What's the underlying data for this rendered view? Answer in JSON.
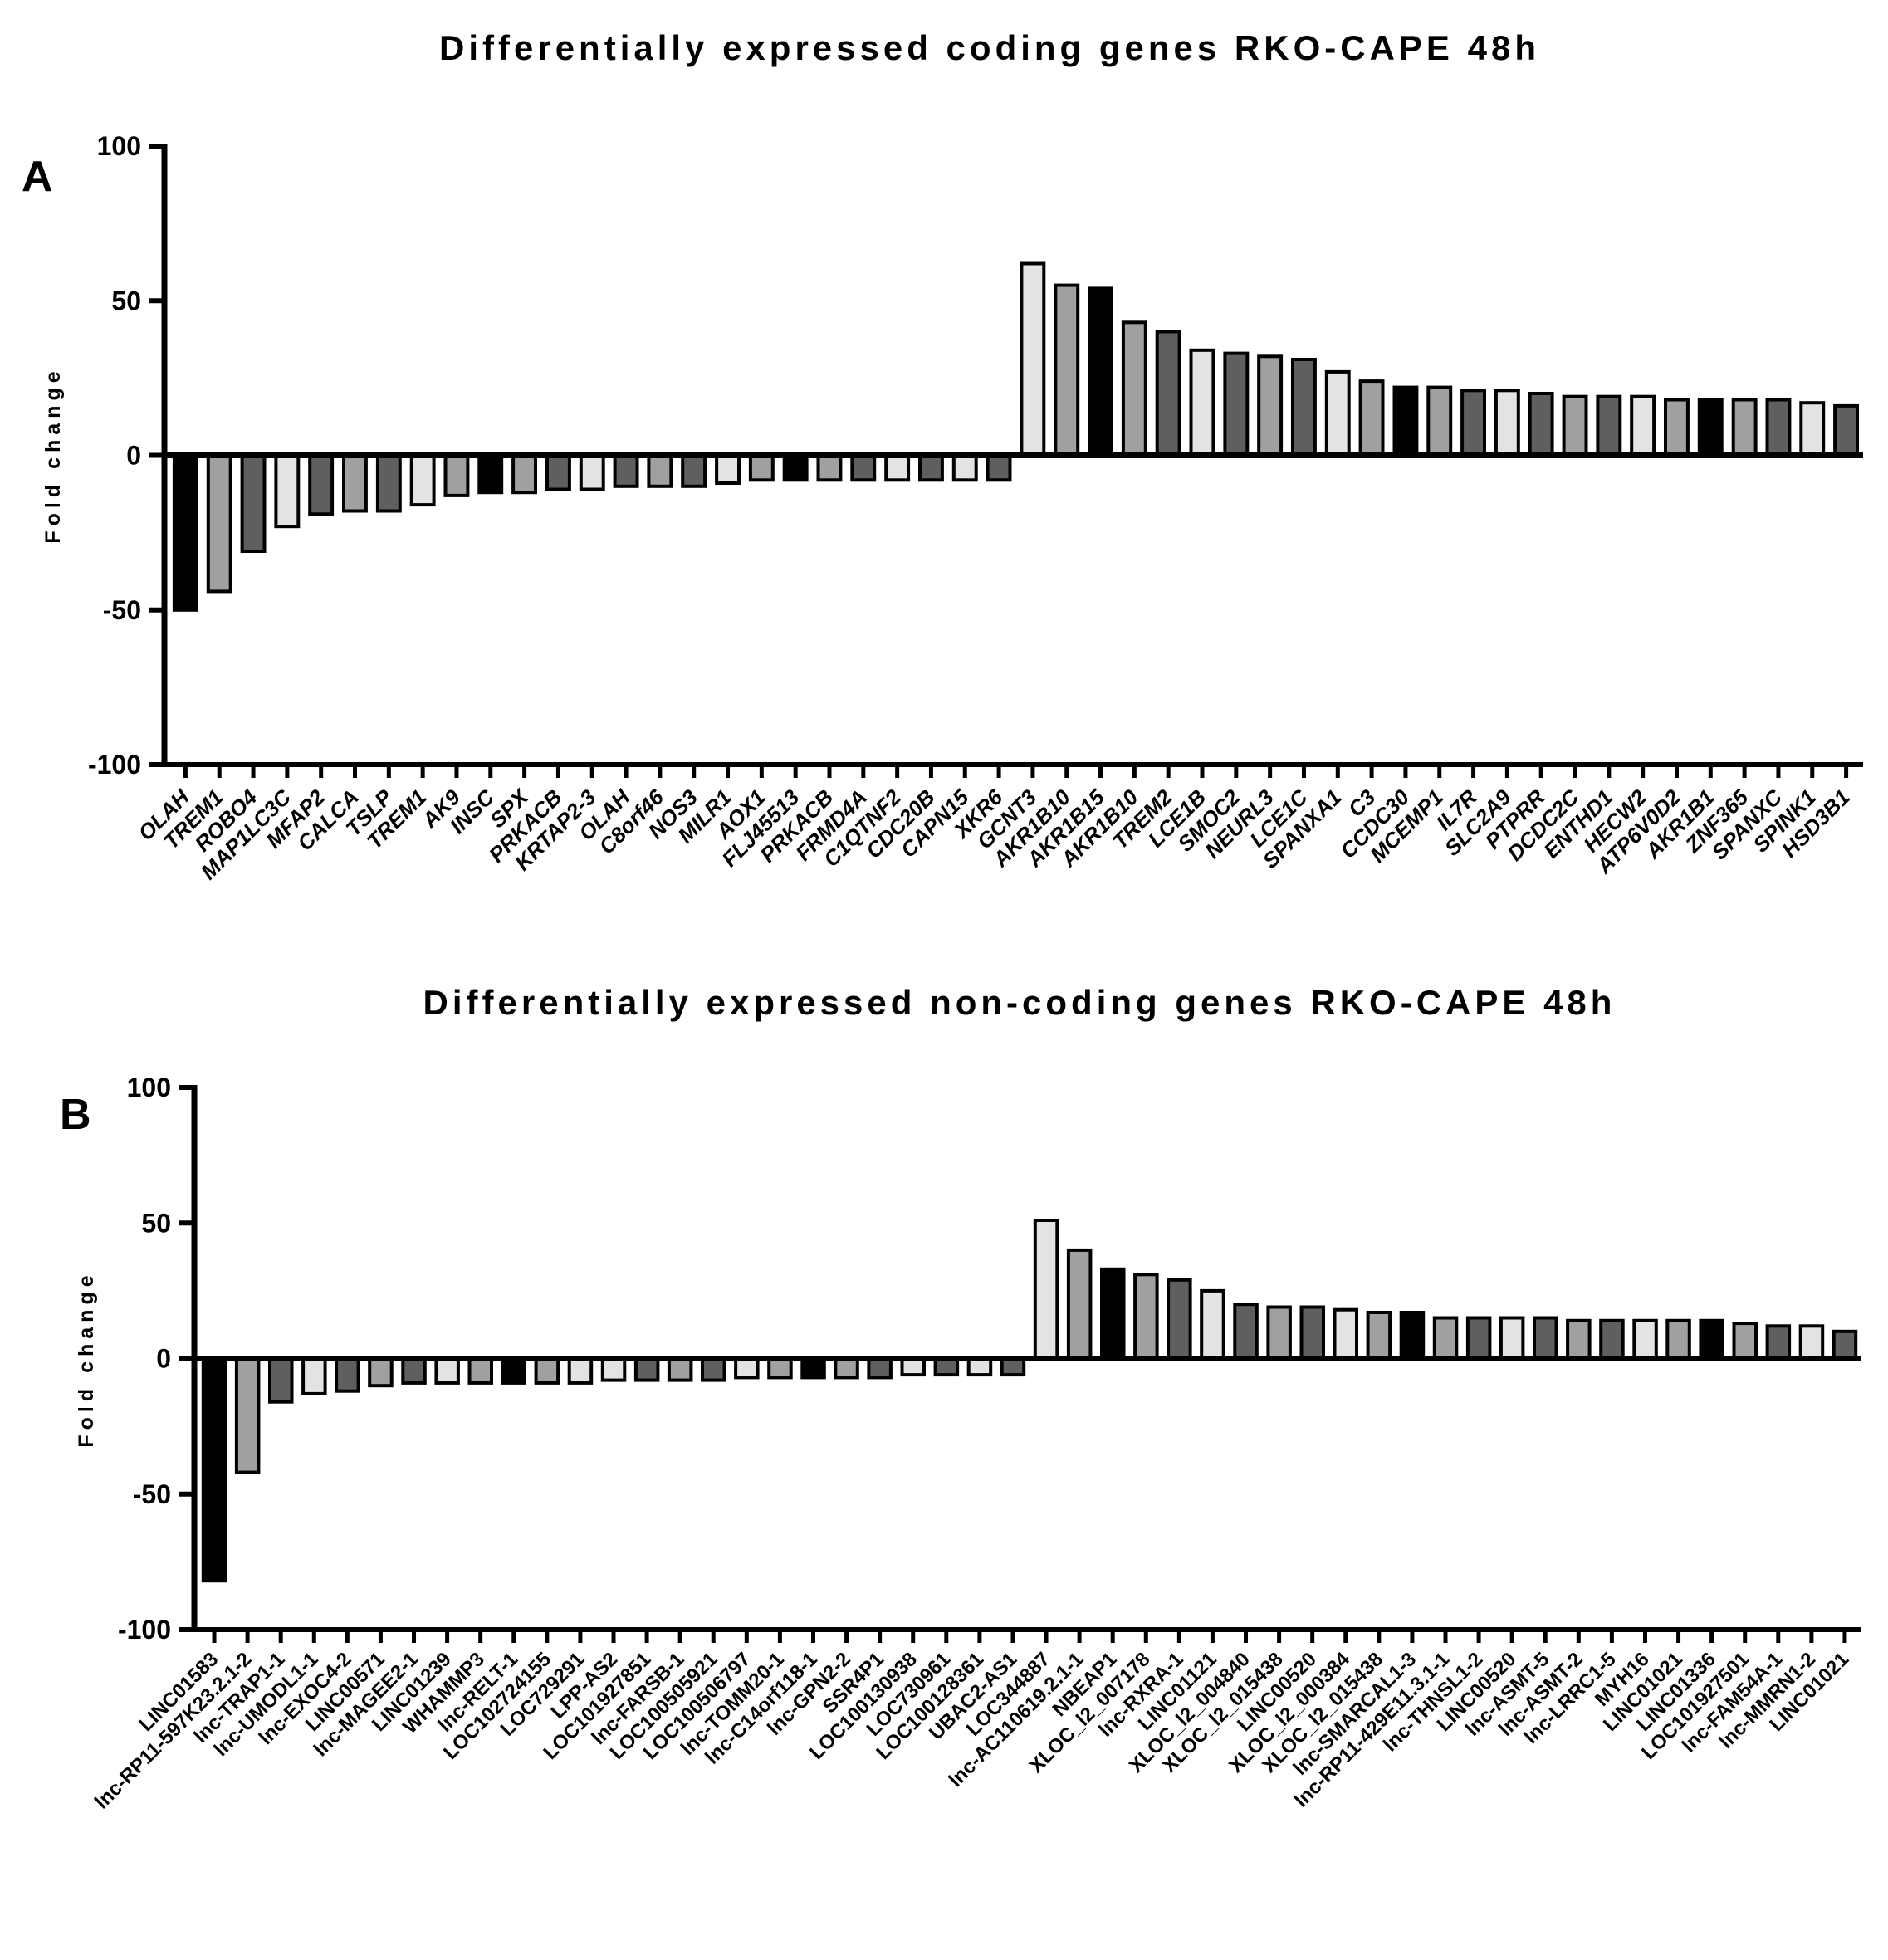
{
  "colors": {
    "palette": [
      "#000000",
      "#a0a0a0",
      "#5f5f5f",
      "#e3e3e3"
    ],
    "edge": "#000000"
  },
  "chart_data": [
    {
      "type": "bar",
      "panel": "A",
      "title": "Differentially expressed coding genes  RKO-CAPE 48h",
      "xlabel": "",
      "ylabel": "Fold change",
      "ylim": [
        -100,
        100
      ],
      "yticks": [
        100,
        50,
        0,
        -50,
        -100
      ],
      "categories": [
        "OLAH",
        "TREM1",
        "ROBO4",
        "MAP1LC3C",
        "MFAP2",
        "CALCA",
        "TSLP",
        "TREM1",
        "AK9",
        "INSC",
        "SPX",
        "PRKACB",
        "KRTAP2-3",
        "OLAH",
        "C8orf46",
        "NOS3",
        "MILR1",
        "AOX1",
        "FLJ45513",
        "PRKACB",
        "FRMD4A",
        "C1QTNF2",
        "CDC20B",
        "CAPN15",
        "XKR6",
        "GCNT3",
        "AKR1B10",
        "AKR1B15",
        "AKR1B10",
        "TREM2",
        "LCE1B",
        "SMOC2",
        "NEURL3",
        "LCE1C",
        "SPANXA1",
        "C3",
        "CCDC30",
        "MCEMP1",
        "IL7R",
        "SLC2A9",
        "PTPRR",
        "DCDC2C",
        "ENTHD1",
        "HECW2",
        "ATP6V0D2",
        "AKR1B1",
        "ZNF365",
        "SPANXC",
        "SPINK1",
        "HSD3B1"
      ],
      "values": [
        -50,
        -44,
        -31,
        -23,
        -19,
        -18,
        -18,
        -16,
        -13,
        -12,
        -12,
        -11,
        -11,
        -10,
        -10,
        -10,
        -9,
        -8,
        -8,
        -8,
        -8,
        -8,
        -8,
        -8,
        -8,
        62,
        55,
        54,
        43,
        40,
        34,
        33,
        32,
        31,
        27,
        24,
        22,
        22,
        21,
        21,
        20,
        19,
        19,
        19,
        18,
        18,
        18,
        18,
        17,
        16
      ],
      "colors": [
        0,
        1,
        2,
        3,
        2,
        1,
        2,
        3,
        1,
        0,
        1,
        2,
        3,
        2,
        1,
        2,
        3,
        1,
        0,
        1,
        2,
        3,
        2,
        3,
        2,
        3,
        1,
        0,
        1,
        2,
        3,
        2,
        1,
        2,
        3,
        1,
        0,
        1,
        2,
        3,
        2,
        1,
        2,
        3,
        1,
        0,
        1,
        2,
        3,
        2
      ]
    },
    {
      "type": "bar",
      "panel": "B",
      "title": "Differentially expressed non-coding genes RKO-CAPE 48h",
      "xlabel": "",
      "ylabel": "Fold change",
      "ylim": [
        -100,
        100
      ],
      "yticks": [
        100,
        50,
        0,
        -50,
        -100
      ],
      "categories": [
        "LINC01583",
        "lnc-RP11-597K23.2.1-2",
        "lnc-TRAP1-1",
        "lnc-UMODL1-1",
        "lnc-EXOC4-2",
        "LINC00571",
        "lnc-MAGEE2-1",
        "LINC01239",
        "WHAMMP3",
        "lnc-RELT-1",
        "LOC102724155",
        "LOC729291",
        "LPP-AS2",
        "LOC101927851",
        "lnc-FARSB-1",
        "LOC100505921",
        "LOC100506797",
        "lnc-TOMM20-1",
        "lnc-C14orf118-1",
        "lnc-GPN2-2",
        "SSR4P1",
        "LOC100130938",
        "LOC730961",
        "LOC100128361",
        "UBAC2-AS1",
        "LOC344887",
        "lnc-AC110619.2.1-1",
        "NBEAP1",
        "XLOC_l2_007178",
        "lnc-RXRA-1",
        "LINC01121",
        "XLOC_l2_004840",
        "XLOC_l2_015438",
        "LINC00520",
        "XLOC_l2_000384",
        "XLOC_l2_015438",
        "lnc-SMARCAL1-3",
        "lnc-RP11-429E11.3.1-1",
        "lnc-THNSL1-2",
        "LINC00520",
        "lnc-ASMT-5",
        "lnc-ASMT-2",
        "lnc-LRRC1-5",
        "MYH16",
        "LINC01021",
        "LINC01336",
        "LOC101927501",
        "lnc-FAM54A-1",
        "lnc-MMRN1-2",
        "LINC01021"
      ],
      "values": [
        -82,
        -42,
        -16,
        -13,
        -12,
        -10,
        -9,
        -9,
        -9,
        -9,
        -9,
        -9,
        -8,
        -8,
        -8,
        -8,
        -7,
        -7,
        -7,
        -7,
        -7,
        -6,
        -6,
        -6,
        -6,
        51,
        40,
        33,
        31,
        29,
        25,
        20,
        19,
        19,
        18,
        17,
        17,
        15,
        15,
        15,
        15,
        14,
        14,
        14,
        14,
        14,
        13,
        12,
        12,
        10
      ],
      "colors": [
        0,
        1,
        2,
        3,
        2,
        1,
        2,
        3,
        1,
        0,
        1,
        3,
        3,
        2,
        1,
        2,
        3,
        1,
        0,
        1,
        2,
        3,
        2,
        3,
        2,
        3,
        1,
        0,
        1,
        2,
        3,
        2,
        1,
        2,
        3,
        1,
        0,
        1,
        2,
        3,
        2,
        1,
        2,
        3,
        1,
        0,
        1,
        2,
        3,
        2
      ]
    }
  ]
}
